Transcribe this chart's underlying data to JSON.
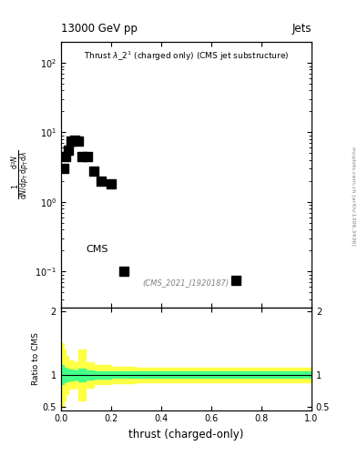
{
  "title": "13000 GeV pp",
  "title_right": "Jets",
  "plot_title": "Thrust $\\lambda\\_2^1$ (charged only) (CMS jet substructure)",
  "xlabel": "thrust (charged-only)",
  "cms_label": "CMS",
  "watermark": "(CMS_2021_I1920187)",
  "arxiv_label": "mcplots.cern.ch [arXiv:1306.3436]",
  "data_x": [
    0.01,
    0.02,
    0.03,
    0.04,
    0.055,
    0.07,
    0.085,
    0.105,
    0.13,
    0.16,
    0.2,
    0.25,
    0.7
  ],
  "data_y": [
    3.0,
    4.5,
    5.5,
    7.5,
    7.8,
    7.5,
    4.5,
    4.5,
    2.8,
    2.0,
    1.8,
    0.1,
    0.075
  ],
  "ylim_log": [
    0.03,
    200
  ],
  "xlim_main": [
    0.0,
    1.0
  ],
  "ratio_xlim": [
    0.0,
    1.0
  ],
  "ratio_ylim": [
    0.45,
    2.05
  ],
  "yellow_band_x": [
    0.0,
    0.005,
    0.01,
    0.02,
    0.03,
    0.05,
    0.07,
    0.1,
    0.13,
    0.2,
    0.3,
    0.5,
    0.7,
    0.85,
    1.0
  ],
  "yellow_band_upper": [
    1.5,
    1.5,
    1.4,
    1.3,
    1.22,
    1.2,
    1.4,
    1.2,
    1.15,
    1.13,
    1.12,
    1.12,
    1.12,
    1.12,
    1.12
  ],
  "yellow_band_lower": [
    0.5,
    0.5,
    0.6,
    0.7,
    0.78,
    0.8,
    0.6,
    0.8,
    0.85,
    0.87,
    0.88,
    0.88,
    0.88,
    0.88,
    0.88
  ],
  "green_band_x": [
    0.0,
    0.005,
    0.01,
    0.02,
    0.03,
    0.05,
    0.07,
    0.1,
    0.13,
    0.2,
    0.3,
    0.5,
    0.7,
    0.85,
    1.0
  ],
  "green_band_upper": [
    1.15,
    1.15,
    1.12,
    1.1,
    1.08,
    1.07,
    1.1,
    1.07,
    1.06,
    1.05,
    1.05,
    1.05,
    1.05,
    1.05,
    1.05
  ],
  "green_band_lower": [
    0.85,
    0.85,
    0.88,
    0.9,
    0.92,
    0.93,
    0.9,
    0.93,
    0.94,
    0.95,
    0.95,
    0.95,
    0.95,
    0.95,
    0.95
  ],
  "marker_color": "black",
  "marker_style": "s",
  "marker_size": 3.5,
  "yellow_color": "#ffff44",
  "green_color": "#44ff88",
  "ratio_line_color": "black",
  "background_color": "white"
}
